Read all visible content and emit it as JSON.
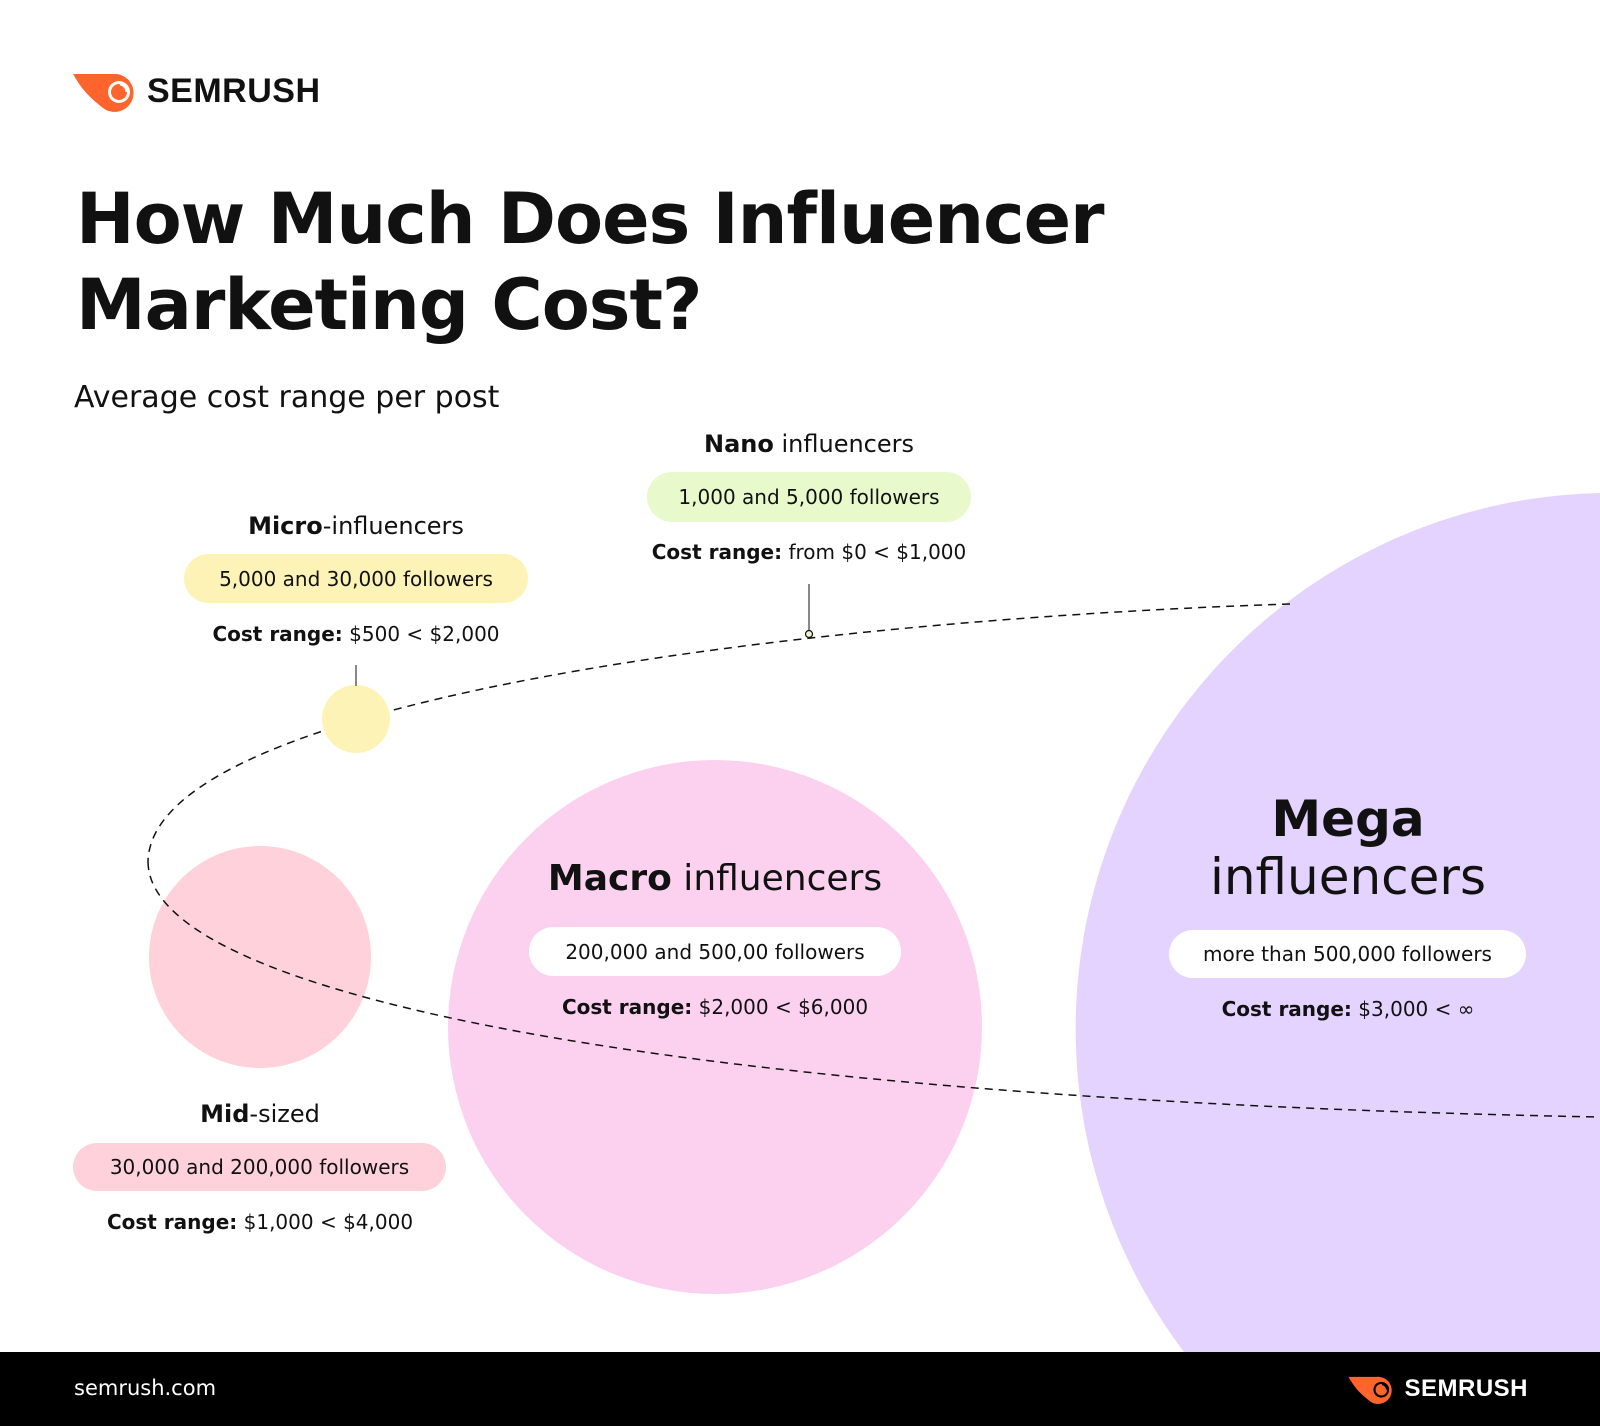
{
  "brand": {
    "name": "SEMRUSH",
    "accent": "#ff642d"
  },
  "title": "How Much Does Influencer Marketing Cost?",
  "subtitle": "Average cost range per post",
  "cost_label": "Cost range:",
  "tiers": {
    "nano": {
      "name_bold": "Nano",
      "name_rest": " influencers",
      "followers": "1,000 and 5,000 followers",
      "cost": "from $0 < $1,000",
      "color": "#e8f9cc"
    },
    "micro": {
      "name_bold": "Micro",
      "name_rest": "-influencers",
      "followers": "5,000 and 30,000 followers",
      "cost": "$500 < $2,000",
      "color": "#fdf3b6"
    },
    "mid": {
      "name_bold": "Mid",
      "name_rest": "-sized",
      "followers": "30,000 and 200,000 followers",
      "cost": "$1,000 < $4,000",
      "color": "#ffd1da"
    },
    "macro": {
      "name_bold": "Macro",
      "name_rest": " influencers",
      "followers": "200,000 and 500,00 followers",
      "cost": "$2,000 < $6,000",
      "color": "#fcd1ef"
    },
    "mega": {
      "name_line1": "Mega",
      "name_line2": "influencers",
      "followers": "more than 500,000 followers",
      "cost": "$3,000 < ∞",
      "color": "#e4d3ff"
    }
  },
  "footer": {
    "url": "semrush.com",
    "brand": "SEMRUSH"
  }
}
